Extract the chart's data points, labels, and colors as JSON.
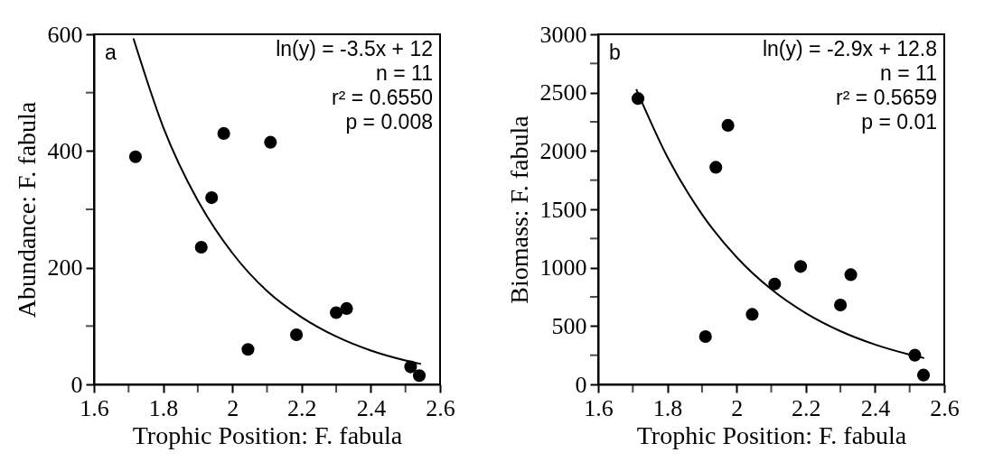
{
  "chart_data": [
    {
      "type": "scatter",
      "xlabel": "Trophic Position: F. fabula",
      "ylabel": "Abundance: F. fabula",
      "annotations": [
        "a",
        "ln(y) = -3.5x + 12",
        "n = 11",
        "r² = 0.6550",
        "p = 0.008"
      ],
      "xlim": [
        1.6,
        2.6
      ],
      "xticks": [
        1.6,
        {
          "value": 1.7,
          "label": null
        },
        1.8,
        {
          "value": 1.9,
          "label": null
        },
        2,
        {
          "value": 2.1,
          "label": null
        },
        2.2,
        {
          "value": 2.3,
          "label": null
        },
        2.4,
        {
          "value": 2.5,
          "label": null
        },
        2.6
      ],
      "ylim": [
        0,
        600
      ],
      "yticks": [
        0,
        {
          "value": 100,
          "label": null
        },
        200,
        {
          "value": 300,
          "label": null
        },
        400,
        {
          "value": 500,
          "label": null
        },
        600
      ],
      "grid": false,
      "series": [
        {
          "color": "#000000",
          "marker": "circle",
          "x": [
            1.72,
            1.91,
            1.94,
            1.975,
            2.045,
            2.11,
            2.185,
            2.3,
            2.33,
            2.515,
            2.54
          ],
          "values": [
            390,
            235,
            320,
            430,
            60,
            415,
            85,
            123,
            130,
            30,
            15
          ]
        },
        {
          "type": "line",
          "color": "#000000",
          "marker": "none",
          "x": [
            1.714,
            1.8,
            1.9,
            2.0,
            2.1,
            2.2,
            2.3,
            2.4,
            2.5,
            2.545
          ],
          "values": [
            593,
            441,
            315,
            225,
            160,
            115,
            82,
            58,
            41,
            35
          ]
        }
      ]
    },
    {
      "type": "scatter",
      "xlabel": "Trophic Position: F. fabula",
      "ylabel": "Biomass: F. fabula",
      "annotations": [
        "b",
        "ln(y) = -2.9x + 12.8",
        "n = 11",
        "r² = 0.5659",
        "p = 0.01"
      ],
      "xlim": [
        1.6,
        2.6
      ],
      "xticks": [
        1.6,
        {
          "value": 1.7,
          "label": null
        },
        1.8,
        {
          "value": 1.9,
          "label": null
        },
        2,
        {
          "value": 2.1,
          "label": null
        },
        2.2,
        {
          "value": 2.3,
          "label": null
        },
        2.4,
        {
          "value": 2.5,
          "label": null
        },
        2.6
      ],
      "ylim": [
        0,
        3000
      ],
      "yticks": [
        0,
        {
          "value": 250,
          "label": null
        },
        500,
        {
          "value": 750,
          "label": null
        },
        1000,
        {
          "value": 1250,
          "label": null
        },
        1500,
        {
          "value": 1750,
          "label": null
        },
        2000,
        {
          "value": 2250,
          "label": null
        },
        2500,
        {
          "value": 2750,
          "label": null
        },
        3000
      ],
      "grid": false,
      "series": [
        {
          "color": "#000000",
          "marker": "circle",
          "x": [
            1.715,
            1.91,
            1.94,
            1.975,
            2.045,
            2.11,
            2.185,
            2.3,
            2.33,
            2.515,
            2.54
          ],
          "values": [
            2450,
            410,
            1860,
            2220,
            600,
            860,
            1010,
            680,
            940,
            250,
            80
          ]
        },
        {
          "type": "line",
          "color": "#000000",
          "marker": "none",
          "x": [
            1.71,
            1.8,
            1.9,
            2.0,
            2.1,
            2.2,
            2.3,
            2.4,
            2.5,
            2.542
          ],
          "values": [
            2529,
            1948,
            1457,
            1090,
            815,
            610,
            456,
            341,
            255,
            225
          ]
        }
      ]
    }
  ]
}
